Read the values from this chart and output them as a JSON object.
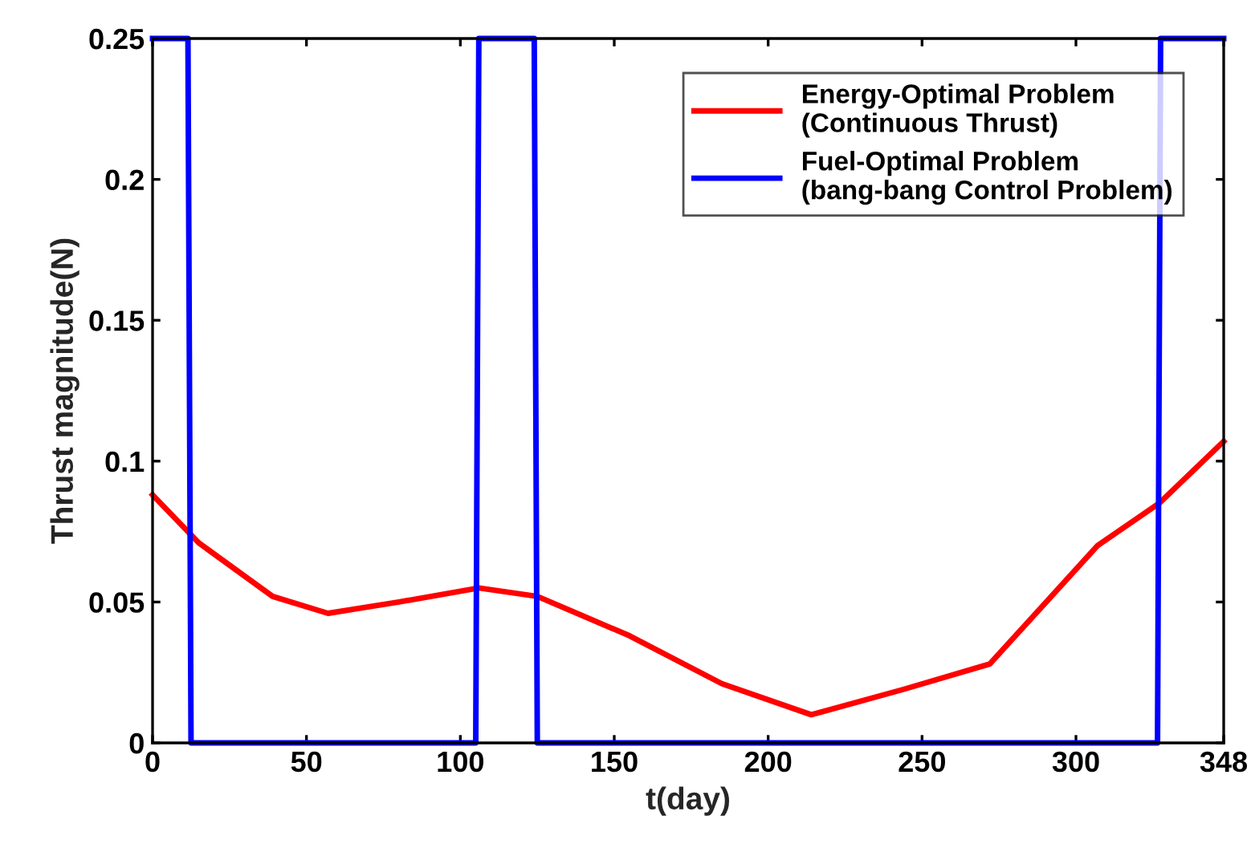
{
  "chart_data": {
    "type": "line",
    "xlabel": "t(day)",
    "ylabel": "Thrust magnitude(N)",
    "xlim": [
      0,
      348
    ],
    "xticks": [
      0,
      50,
      100,
      150,
      200,
      250,
      300,
      348
    ],
    "ylim": [
      0,
      0.25
    ],
    "yticks": [
      0,
      0.05,
      0.1,
      0.15,
      0.2,
      0.25
    ],
    "grid": false,
    "legend": "top right",
    "line_style": "solid",
    "marker": "none",
    "series": [
      {
        "name": "Energy-Optimal Problem\n(Continuous Thrust)",
        "color": "#ff0000",
        "x": [
          0,
          15,
          39,
          57,
          80,
          106,
          125,
          155,
          185,
          214,
          244,
          272,
          307,
          327,
          348
        ],
        "values": [
          0.088,
          0.071,
          0.052,
          0.046,
          0.05,
          0.055,
          0.052,
          0.038,
          0.021,
          0.01,
          0.019,
          0.028,
          0.07,
          0.085,
          0.107
        ]
      },
      {
        "name": "Fuel-Optimal Problem\n(bang-bang Control Problem)",
        "color": "#0000ff",
        "x": [
          0,
          11.5,
          12.5,
          105,
          106,
          124,
          125,
          326.5,
          327.5,
          348
        ],
        "values": [
          0.25,
          0.25,
          0,
          0,
          0.25,
          0.25,
          0,
          0,
          0.25,
          0.25
        ]
      }
    ]
  }
}
